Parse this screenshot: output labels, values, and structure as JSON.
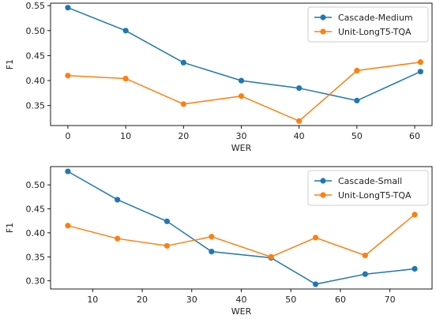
{
  "chart_data": [
    {
      "type": "line",
      "xlabel": "WER",
      "ylabel": "F1",
      "xlim": [
        -3,
        63
      ],
      "ylim": [
        0.31,
        0.555
      ],
      "xticks": [
        0,
        10,
        20,
        30,
        40,
        50,
        60
      ],
      "yticks": [
        0.35,
        0.4,
        0.45,
        0.5,
        0.55
      ],
      "legend": "top-right",
      "grid": false,
      "series": [
        {
          "name": "Cascade-Medium",
          "color": "#1f77b4",
          "x": [
            0,
            10,
            20,
            30,
            40,
            50,
            61
          ],
          "y": [
            0.546,
            0.5,
            0.436,
            0.4,
            0.385,
            0.36,
            0.418
          ]
        },
        {
          "name": "Unit-LongT5-TQA",
          "color": "#ff7f0e",
          "x": [
            0,
            10,
            20,
            30,
            40,
            50,
            61
          ],
          "y": [
            0.41,
            0.404,
            0.353,
            0.369,
            0.319,
            0.42,
            0.437
          ]
        }
      ]
    },
    {
      "type": "line",
      "xlabel": "WER",
      "ylabel": "F1",
      "xlim": [
        1.5,
        78.5
      ],
      "ylim": [
        0.283,
        0.538
      ],
      "xticks": [
        10,
        20,
        30,
        40,
        50,
        60,
        70
      ],
      "yticks": [
        0.3,
        0.35,
        0.4,
        0.45,
        0.5
      ],
      "legend": "top-right",
      "grid": false,
      "series": [
        {
          "name": "Cascade-Small",
          "color": "#1f77b4",
          "x": [
            5,
            15,
            25,
            34,
            46,
            55,
            65,
            75
          ],
          "y": [
            0.528,
            0.469,
            0.424,
            0.361,
            0.348,
            0.293,
            0.314,
            0.325
          ]
        },
        {
          "name": "Unit-LongT5-TQA",
          "color": "#ff7f0e",
          "x": [
            5,
            15,
            25,
            34,
            46,
            55,
            65,
            75
          ],
          "y": [
            0.415,
            0.388,
            0.373,
            0.392,
            0.35,
            0.39,
            0.353,
            0.438
          ]
        }
      ]
    }
  ]
}
